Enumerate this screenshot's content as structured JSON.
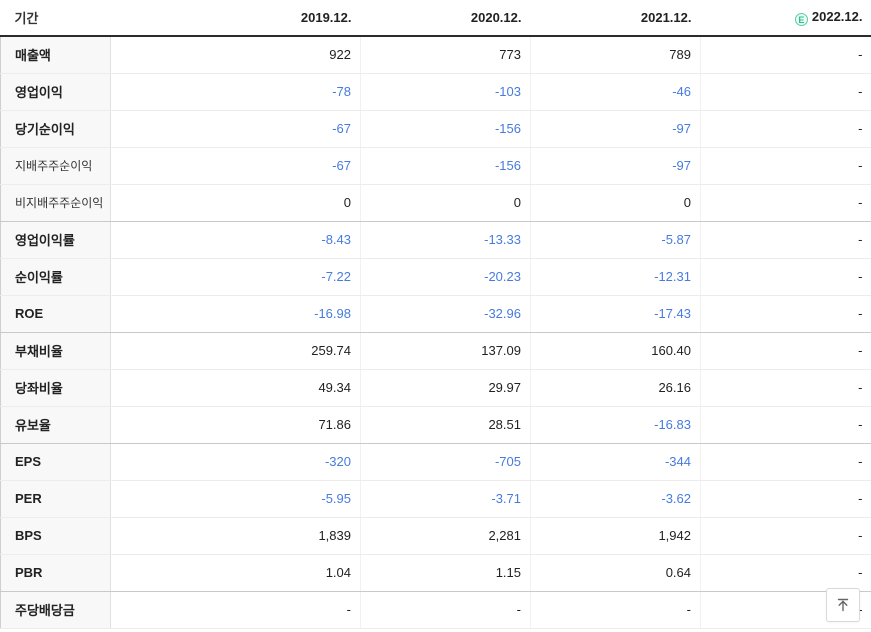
{
  "table": {
    "period_label": "기간",
    "columns": [
      "2019.12.",
      "2020.12.",
      "2021.12.",
      "2022.12."
    ],
    "estimate_badge": "E",
    "rows": [
      {
        "label": "매출액",
        "values": [
          "922",
          "773",
          "789",
          "-"
        ],
        "sub": false,
        "group_end": false
      },
      {
        "label": "영업이익",
        "values": [
          "-78",
          "-103",
          "-46",
          "-"
        ],
        "sub": false,
        "group_end": false
      },
      {
        "label": "당기순이익",
        "values": [
          "-67",
          "-156",
          "-97",
          "-"
        ],
        "sub": false,
        "group_end": false
      },
      {
        "label": "지배주주순이익",
        "values": [
          "-67",
          "-156",
          "-97",
          "-"
        ],
        "sub": true,
        "group_end": false
      },
      {
        "label": "비지배주주순이익",
        "values": [
          "0",
          "0",
          "0",
          "-"
        ],
        "sub": true,
        "group_end": true
      },
      {
        "label": "영업이익률",
        "values": [
          "-8.43",
          "-13.33",
          "-5.87",
          "-"
        ],
        "sub": false,
        "group_end": false
      },
      {
        "label": "순이익률",
        "values": [
          "-7.22",
          "-20.23",
          "-12.31",
          "-"
        ],
        "sub": false,
        "group_end": false
      },
      {
        "label": "ROE",
        "values": [
          "-16.98",
          "-32.96",
          "-17.43",
          "-"
        ],
        "sub": false,
        "group_end": true
      },
      {
        "label": "부채비율",
        "values": [
          "259.74",
          "137.09",
          "160.40",
          "-"
        ],
        "sub": false,
        "group_end": false
      },
      {
        "label": "당좌비율",
        "values": [
          "49.34",
          "29.97",
          "26.16",
          "-"
        ],
        "sub": false,
        "group_end": false
      },
      {
        "label": "유보율",
        "values": [
          "71.86",
          "28.51",
          "-16.83",
          "-"
        ],
        "sub": false,
        "group_end": true
      },
      {
        "label": "EPS",
        "values": [
          "-320",
          "-705",
          "-344",
          "-"
        ],
        "sub": false,
        "group_end": false
      },
      {
        "label": "PER",
        "values": [
          "-5.95",
          "-3.71",
          "-3.62",
          "-"
        ],
        "sub": false,
        "group_end": false
      },
      {
        "label": "BPS",
        "values": [
          "1,839",
          "2,281",
          "1,942",
          "-"
        ],
        "sub": false,
        "group_end": false
      },
      {
        "label": "PBR",
        "values": [
          "1.04",
          "1.15",
          "0.64",
          "-"
        ],
        "sub": false,
        "group_end": true
      },
      {
        "label": "주당배당금",
        "values": [
          "-",
          "-",
          "-",
          "-"
        ],
        "sub": false,
        "group_end": false
      }
    ]
  },
  "colors": {
    "negative_value": "#477bde",
    "estimate_green": "#2fbd95",
    "header_rule": "#2b2b2b"
  },
  "scroll_top_button": {
    "icon": "scroll-to-top-arrow-icon"
  }
}
